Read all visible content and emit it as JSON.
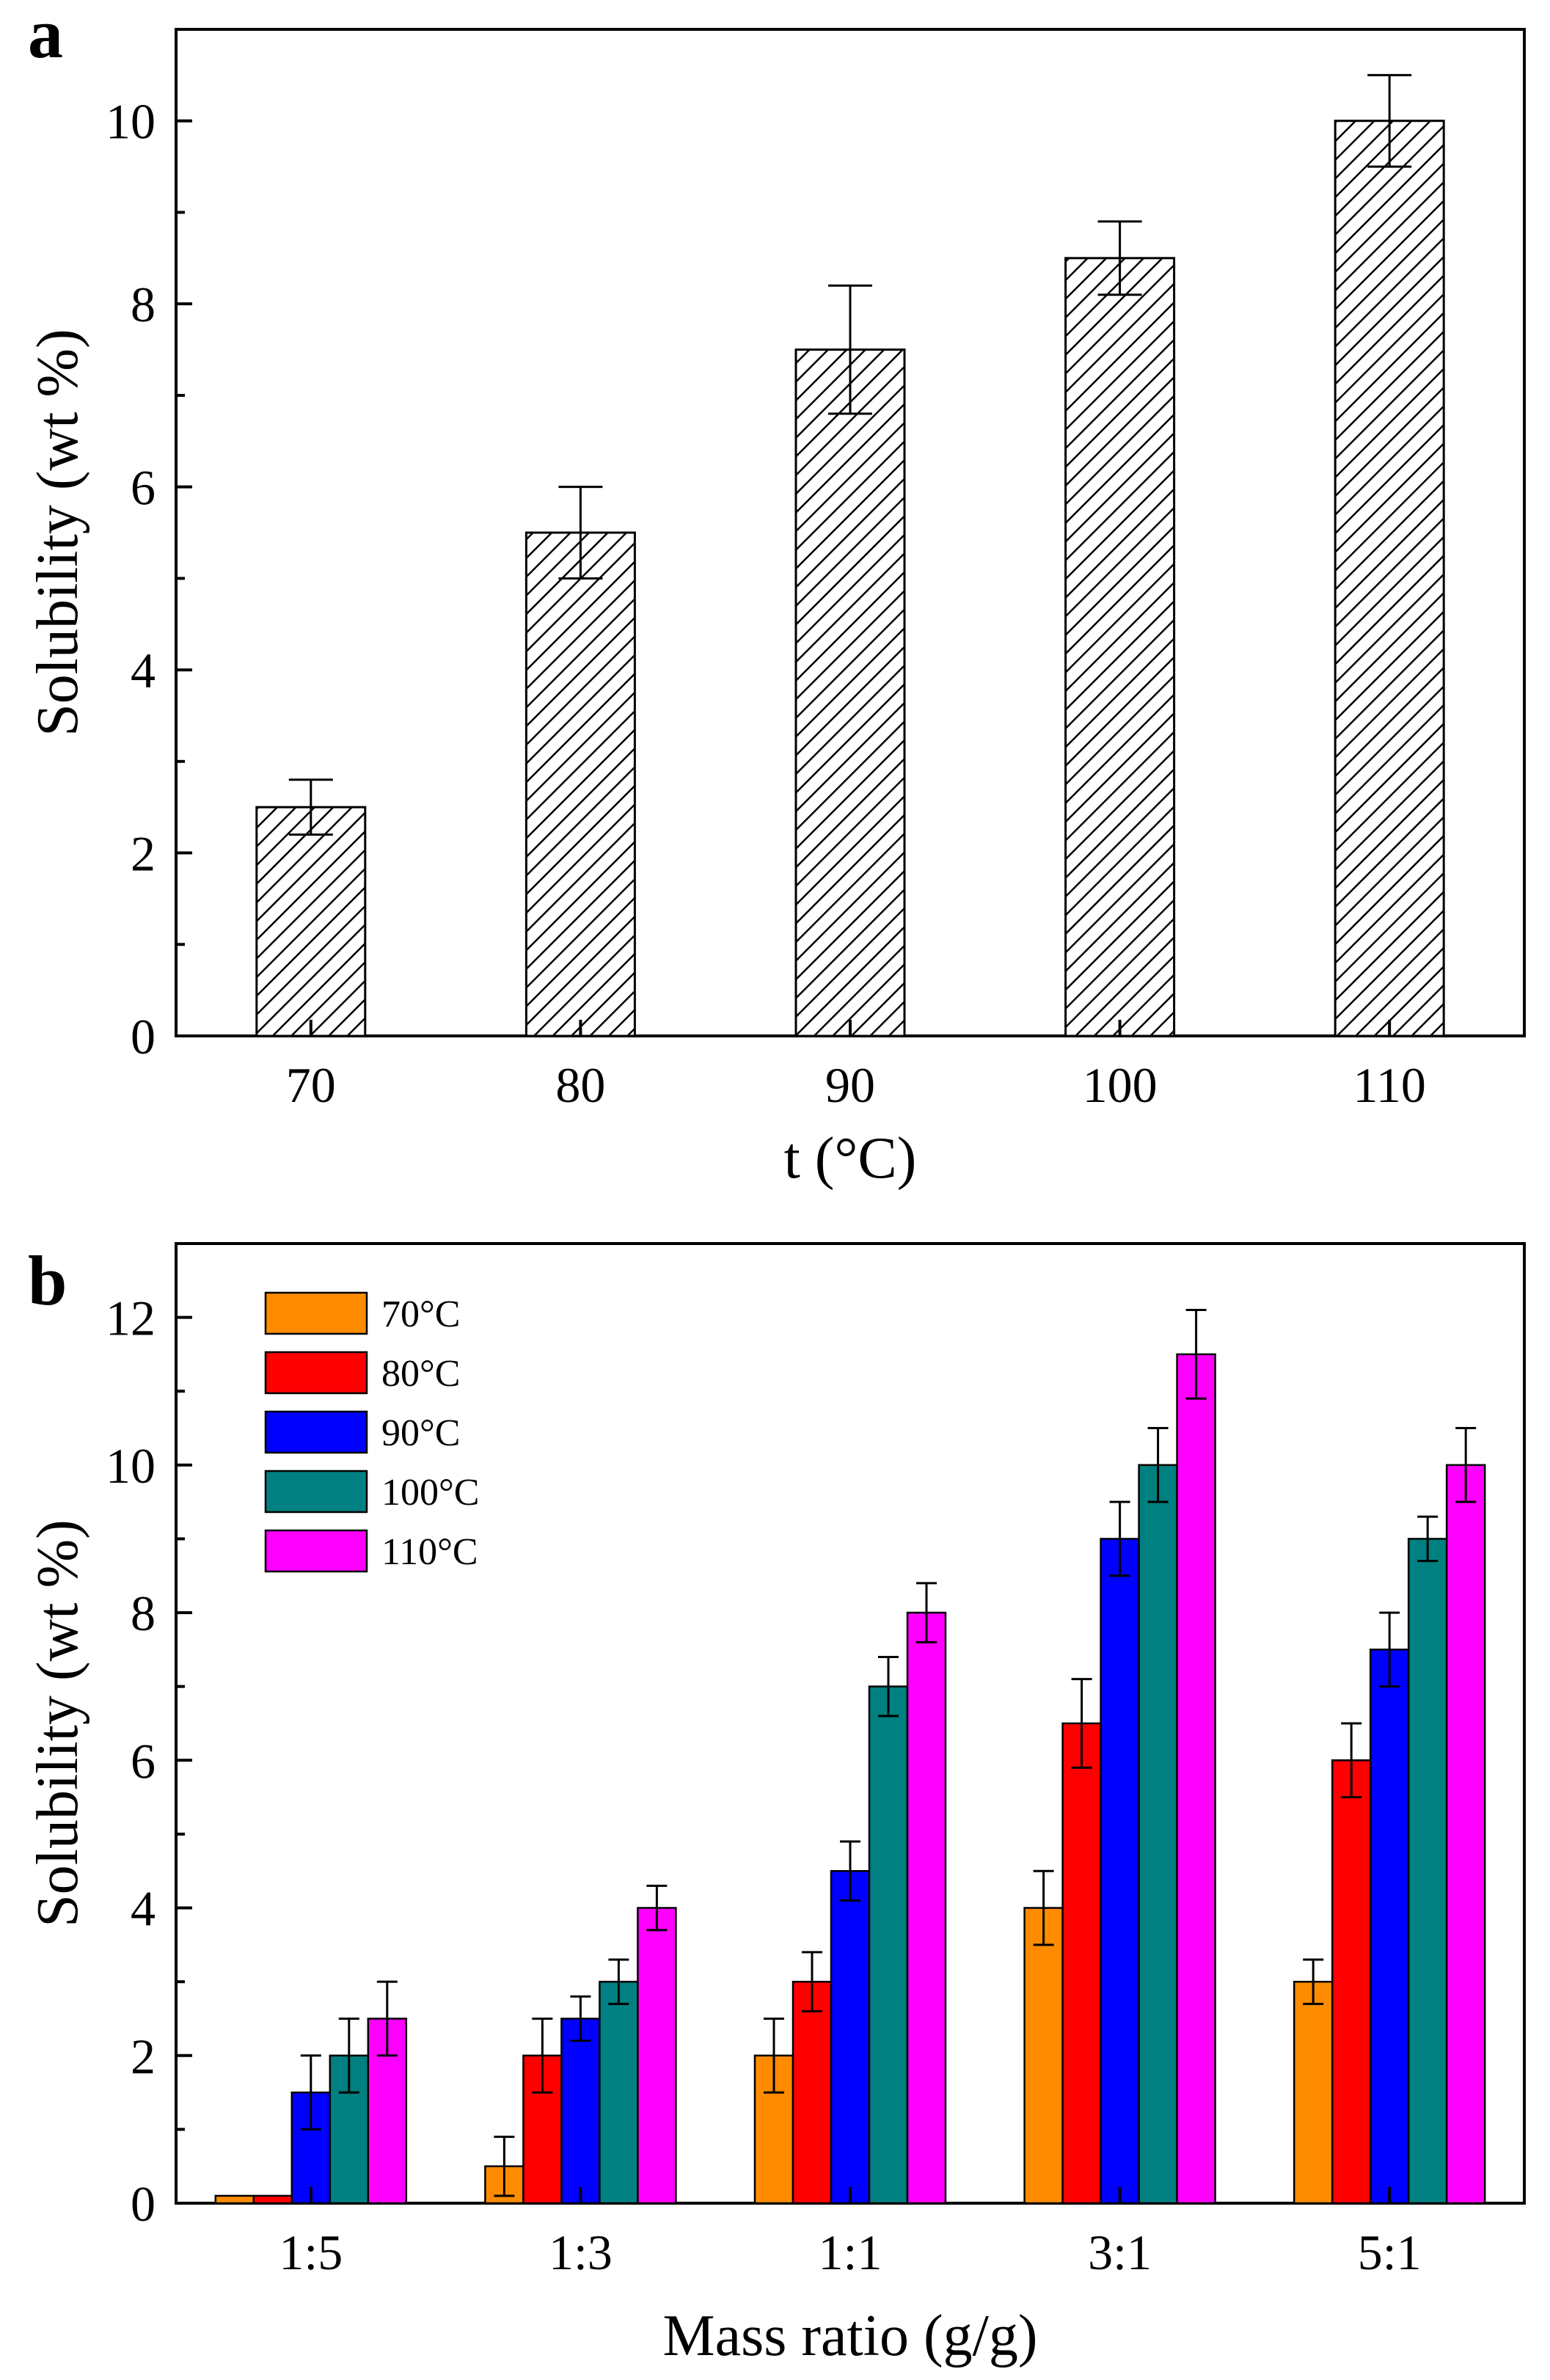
{
  "chart_data": [
    {
      "panel": "a",
      "type": "bar",
      "xlabel": "t (°C)",
      "ylabel": "Solubility (wt %)",
      "categories": [
        "70",
        "80",
        "90",
        "100",
        "110"
      ],
      "values": [
        2.5,
        5.5,
        7.5,
        8.5,
        10.0
      ],
      "errors": [
        0.3,
        0.5,
        0.7,
        0.4,
        0.5
      ],
      "ylim": [
        0,
        11
      ],
      "yticks": [
        0,
        2,
        4,
        6,
        8,
        10
      ],
      "fill": "hatched",
      "grid": false
    },
    {
      "panel": "b",
      "type": "bar",
      "xlabel": "Mass ratio (g/g)",
      "ylabel": "Solubility (wt %)",
      "categories": [
        "1:5",
        "1:3",
        "1:1",
        "3:1",
        "5:1"
      ],
      "ylim": [
        0,
        13
      ],
      "yticks": [
        0,
        2,
        4,
        6,
        8,
        10,
        12
      ],
      "legend_position": "top-left",
      "grid": false,
      "series": [
        {
          "name": "70°C",
          "color": "#FF8C00",
          "values": [
            0.1,
            0.5,
            2.0,
            4.0,
            3.0
          ],
          "errors": [
            0,
            0.4,
            0.5,
            0.5,
            0.3
          ]
        },
        {
          "name": "80°C",
          "color": "#FF0000",
          "values": [
            0.1,
            2.0,
            3.0,
            6.5,
            6.0
          ],
          "errors": [
            0,
            0.5,
            0.4,
            0.6,
            0.5
          ]
        },
        {
          "name": "90°C",
          "color": "#0000FF",
          "values": [
            1.5,
            2.5,
            4.5,
            9.0,
            7.5
          ],
          "errors": [
            0.5,
            0.3,
            0.4,
            0.5,
            0.5
          ]
        },
        {
          "name": "100°C",
          "color": "#008080",
          "values": [
            2.0,
            3.0,
            7.0,
            10.0,
            9.0
          ],
          "errors": [
            0.5,
            0.3,
            0.4,
            0.5,
            0.3
          ]
        },
        {
          "name": "110°C",
          "color": "#FF00FF",
          "values": [
            2.5,
            4.0,
            8.0,
            11.5,
            10.0
          ],
          "errors": [
            0.5,
            0.3,
            0.4,
            0.6,
            0.5
          ]
        }
      ]
    }
  ]
}
